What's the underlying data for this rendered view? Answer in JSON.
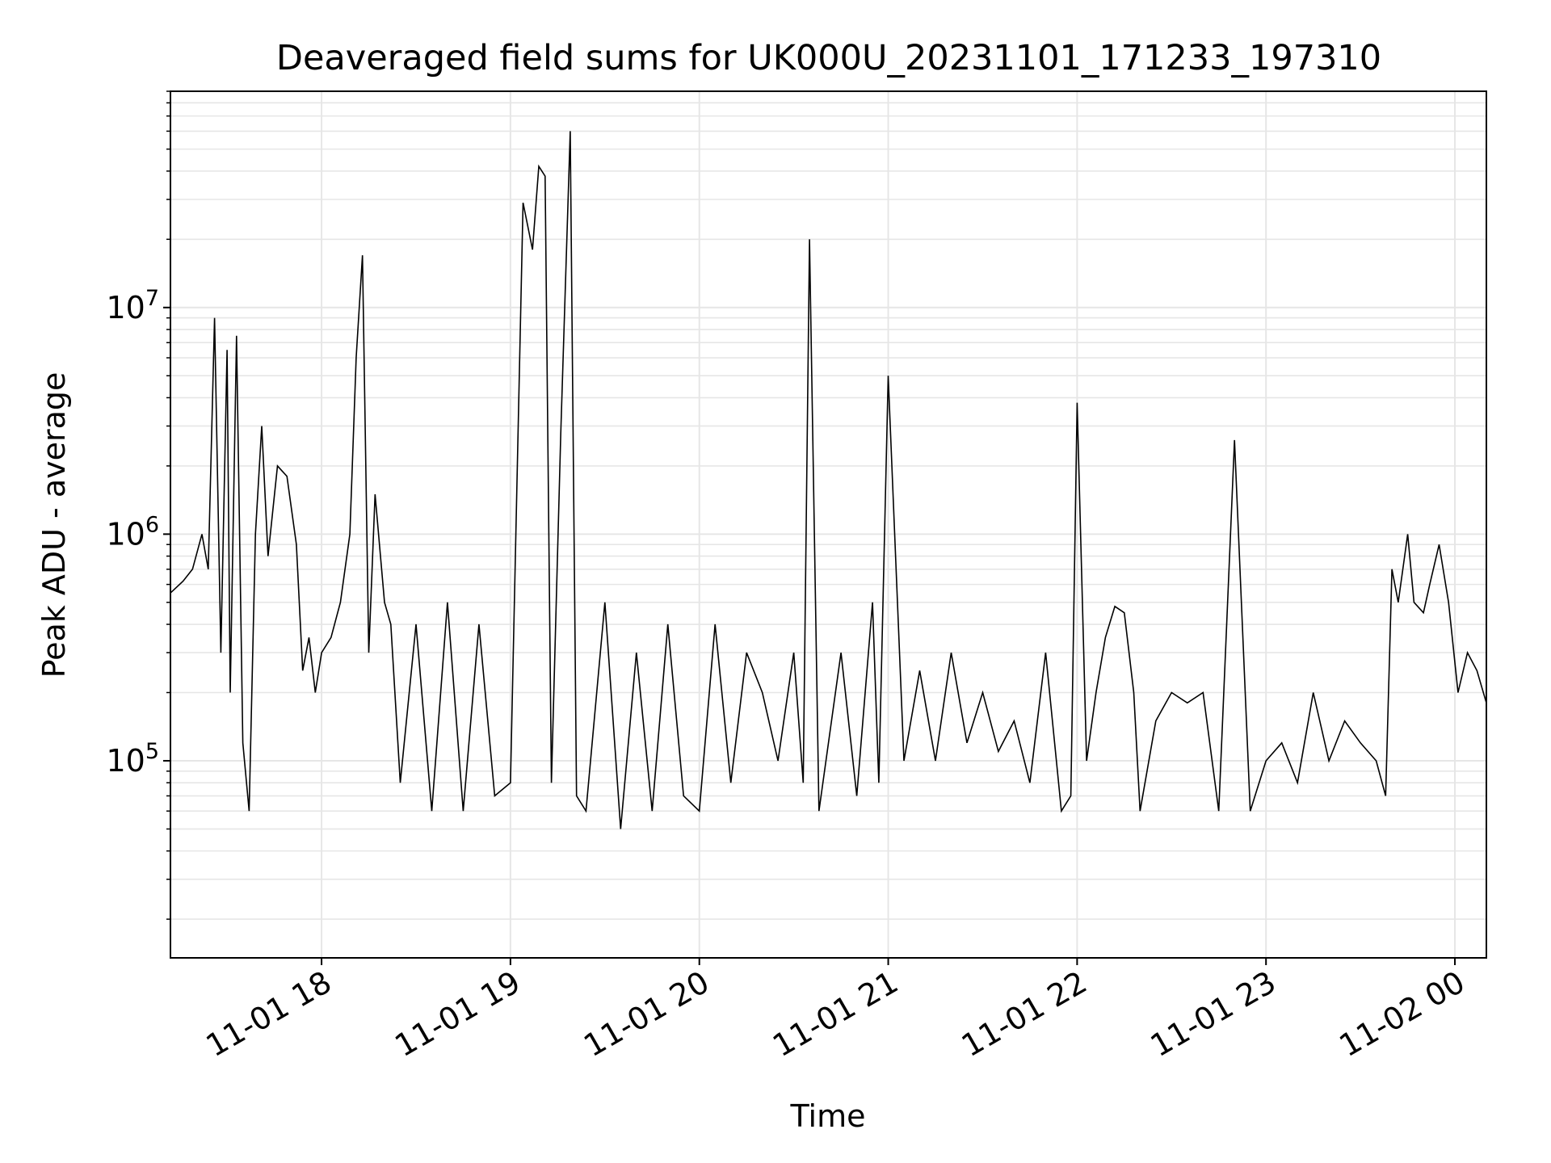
{
  "chart_data": {
    "type": "line",
    "title": "Deaveraged field sums for UK000U_20231101_171233_197310",
    "xlabel": "Time",
    "ylabel": "Peak ADU - average",
    "yscale": "log",
    "grid": true,
    "line_color": "#000000",
    "grid_color": "#e6e6e6",
    "xlim": [
      "2023-11-01 17:12",
      "2023-11-02 00:10"
    ],
    "ylim": [
      13500,
      90000000
    ],
    "x_ticks": [
      "2023-11-01 18:00",
      "2023-11-01 19:00",
      "2023-11-01 20:00",
      "2023-11-01 21:00",
      "2023-11-01 22:00",
      "2023-11-01 23:00",
      "2023-11-02 00:00"
    ],
    "x_tick_labels": [
      "11-01 18",
      "11-01 19",
      "11-01 20",
      "11-01 21",
      "11-01 22",
      "11-01 23",
      "11-02 00"
    ],
    "y_ticks": [
      {
        "value": 100000,
        "base": "10",
        "exp": "5"
      },
      {
        "value": 1000000,
        "base": "10",
        "exp": "6"
      },
      {
        "value": 10000000,
        "base": "10",
        "exp": "7"
      }
    ],
    "series": [
      {
        "name": "",
        "color": "#000000",
        "x": [
          "2023-11-01 17:12",
          "2023-11-01 17:16",
          "2023-11-01 17:19",
          "2023-11-01 17:22",
          "2023-11-01 17:24",
          "2023-11-01 17:26",
          "2023-11-01 17:28",
          "2023-11-01 17:30",
          "2023-11-01 17:31",
          "2023-11-01 17:33",
          "2023-11-01 17:35",
          "2023-11-01 17:37",
          "2023-11-01 17:39",
          "2023-11-01 17:41",
          "2023-11-01 17:43",
          "2023-11-01 17:46",
          "2023-11-01 17:49",
          "2023-11-01 17:52",
          "2023-11-01 17:54",
          "2023-11-01 17:56",
          "2023-11-01 17:58",
          "2023-11-01 18:00",
          "2023-11-01 18:03",
          "2023-11-01 18:06",
          "2023-11-01 18:09",
          "2023-11-01 18:11",
          "2023-11-01 18:13",
          "2023-11-01 18:15",
          "2023-11-01 18:17",
          "2023-11-01 18:20",
          "2023-11-01 18:22",
          "2023-11-01 18:25",
          "2023-11-01 18:30",
          "2023-11-01 18:35",
          "2023-11-01 18:40",
          "2023-11-01 18:45",
          "2023-11-01 18:50",
          "2023-11-01 18:55",
          "2023-11-01 19:00",
          "2023-11-01 19:04",
          "2023-11-01 19:07",
          "2023-11-01 19:09",
          "2023-11-01 19:11",
          "2023-11-01 19:13",
          "2023-11-01 19:16",
          "2023-11-01 19:19",
          "2023-11-01 19:21",
          "2023-11-01 19:24",
          "2023-11-01 19:30",
          "2023-11-01 19:35",
          "2023-11-01 19:40",
          "2023-11-01 19:45",
          "2023-11-01 19:50",
          "2023-11-01 19:55",
          "2023-11-01 20:00",
          "2023-11-01 20:05",
          "2023-11-01 20:10",
          "2023-11-01 20:15",
          "2023-11-01 20:20",
          "2023-11-01 20:25",
          "2023-11-01 20:30",
          "2023-11-01 20:33",
          "2023-11-01 20:35",
          "2023-11-01 20:38",
          "2023-11-01 20:45",
          "2023-11-01 20:50",
          "2023-11-01 20:55",
          "2023-11-01 20:57",
          "2023-11-01 21:00",
          "2023-11-01 21:05",
          "2023-11-01 21:10",
          "2023-11-01 21:15",
          "2023-11-01 21:20",
          "2023-11-01 21:25",
          "2023-11-01 21:30",
          "2023-11-01 21:35",
          "2023-11-01 21:40",
          "2023-11-01 21:45",
          "2023-11-01 21:50",
          "2023-11-01 21:55",
          "2023-11-01 21:58",
          "2023-11-01 22:00",
          "2023-11-01 22:03",
          "2023-11-01 22:06",
          "2023-11-01 22:09",
          "2023-11-01 22:12",
          "2023-11-01 22:15",
          "2023-11-01 22:18",
          "2023-11-01 22:20",
          "2023-11-01 22:25",
          "2023-11-01 22:30",
          "2023-11-01 22:35",
          "2023-11-01 22:40",
          "2023-11-01 22:45",
          "2023-11-01 22:50",
          "2023-11-01 22:55",
          "2023-11-01 23:00",
          "2023-11-01 23:05",
          "2023-11-01 23:10",
          "2023-11-01 23:15",
          "2023-11-01 23:20",
          "2023-11-01 23:25",
          "2023-11-01 23:30",
          "2023-11-01 23:35",
          "2023-11-01 23:38",
          "2023-11-01 23:40",
          "2023-11-01 23:42",
          "2023-11-01 23:45",
          "2023-11-01 23:47",
          "2023-11-01 23:50",
          "2023-11-01 23:52",
          "2023-11-01 23:55",
          "2023-11-01 23:58",
          "2023-11-02 00:01",
          "2023-11-02 00:04",
          "2023-11-02 00:07",
          "2023-11-02 00:10"
        ],
        "y": [
          550000,
          620000,
          700000,
          1000000,
          700000,
          9000000,
          300000,
          6500000,
          200000,
          7500000,
          120000,
          60000,
          1000000,
          3000000,
          800000,
          2000000,
          1800000,
          900000,
          250000,
          350000,
          200000,
          300000,
          350000,
          500000,
          1000000,
          6000000,
          17000000,
          300000,
          1500000,
          500000,
          400000,
          80000,
          400000,
          60000,
          500000,
          60000,
          400000,
          70000,
          80000,
          29000000,
          18000000,
          42000000,
          38000000,
          80000,
          2800000,
          60000000,
          70000,
          60000,
          500000,
          50000,
          300000,
          60000,
          400000,
          70000,
          60000,
          400000,
          80000,
          300000,
          200000,
          100000,
          300000,
          80000,
          20000000,
          60000,
          300000,
          70000,
          500000,
          80000,
          5000000,
          100000,
          250000,
          100000,
          300000,
          120000,
          200000,
          110000,
          150000,
          80000,
          300000,
          60000,
          70000,
          3800000,
          100000,
          200000,
          350000,
          480000,
          450000,
          200000,
          60000,
          150000,
          200000,
          180000,
          200000,
          60000,
          2600000,
          60000,
          100000,
          120000,
          80000,
          200000,
          100000,
          150000,
          120000,
          100000,
          70000,
          700000,
          500000,
          1000000,
          500000,
          450000,
          600000,
          900000,
          500000,
          200000,
          300000,
          250000,
          180000
        ]
      }
    ]
  }
}
